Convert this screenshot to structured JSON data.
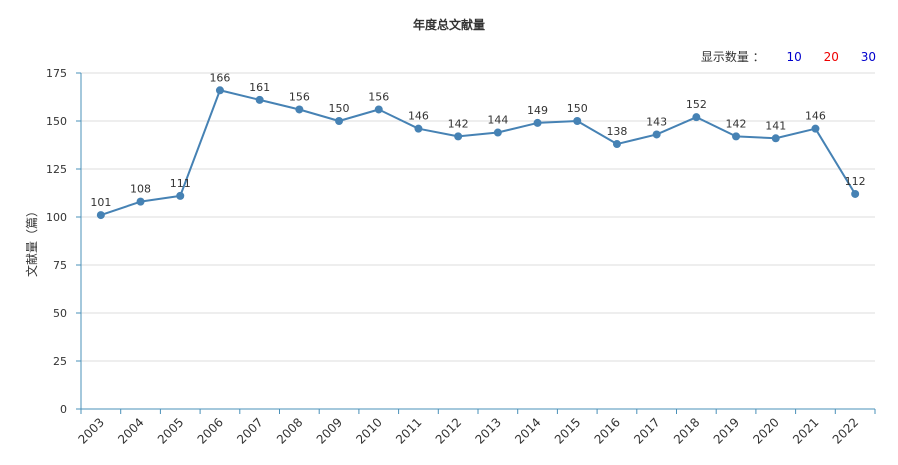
{
  "header": {
    "title": "年度总文献量"
  },
  "count_control": {
    "label": "显示数量 ：",
    "options": [
      {
        "label": "10",
        "color": "#0000cc"
      },
      {
        "label": "20",
        "color": "#ee0000"
      },
      {
        "label": "30",
        "color": "#0000cc"
      }
    ]
  },
  "colors": {
    "line": "#4682b4",
    "axis": "#4a90b8",
    "grid": "#dddddd"
  },
  "chart_data": {
    "type": "line",
    "title": "年度总文献量",
    "ylabel": "文献量（篇）",
    "xlabel": "",
    "ylim": [
      0,
      175
    ],
    "yticks": [
      0,
      25,
      50,
      75,
      100,
      125,
      150,
      175
    ],
    "grid": true,
    "x": [
      "2003",
      "2004",
      "2005",
      "2006",
      "2007",
      "2008",
      "2009",
      "2010",
      "2011",
      "2012",
      "2013",
      "2014",
      "2015",
      "2016",
      "2017",
      "2018",
      "2019",
      "2020",
      "2021",
      "2022"
    ],
    "series": [
      {
        "values": [
          101,
          108,
          111,
          166,
          161,
          156,
          150,
          156,
          146,
          142,
          144,
          149,
          150,
          138,
          143,
          152,
          142,
          141,
          146,
          112
        ]
      }
    ]
  }
}
